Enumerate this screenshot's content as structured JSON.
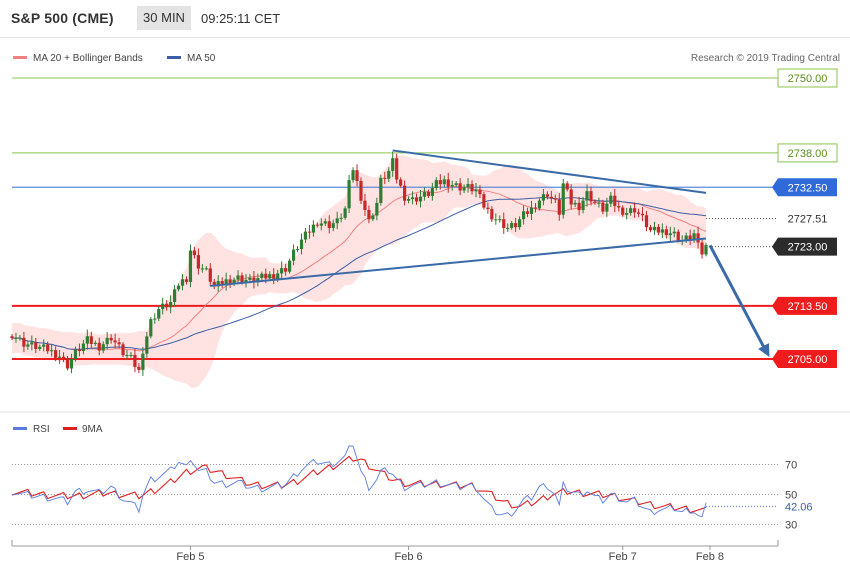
{
  "header": {
    "symbol": "S&P 500 (CME)",
    "timeframe": "30 MIN",
    "time": "09:25:11 CET"
  },
  "legend": {
    "ma20_label": "MA 20 + Bollinger Bands",
    "ma50_label": "MA 50",
    "credit": "Research © 2019 Trading Central",
    "rsi_label": "RSI",
    "rsi_ma_label": "9MA"
  },
  "colors": {
    "ma20": "#f08080",
    "band_fill": "#ffd9d9",
    "ma50": "#3a5ea6",
    "up_candle": "#2e7d32",
    "down_candle": "#c62828",
    "trendline": "#3a6aa8",
    "support": "#ee1c1c",
    "resistance_target": "#8bc34a",
    "pivot_line": "#5b8dd9",
    "arrow": "#3a6aa8",
    "rsi": "#5b7be0",
    "rsi_ma": "#e02020"
  },
  "chart_data": [
    {
      "type": "candlestick",
      "title": "S&P 500 (CME) 30 MIN",
      "y_range": [
        2700.5,
        2751.0
      ],
      "x_range": [
        0,
        180
      ],
      "x_tick_labels": [
        {
          "label": "Feb 5",
          "x": 45
        },
        {
          "label": "Feb 6",
          "x": 100
        },
        {
          "label": "Feb 7",
          "x": 154
        },
        {
          "label": "Feb 8",
          "x": 176
        }
      ],
      "levels": [
        {
          "label": "2750.00",
          "value": 2750.0,
          "style": "target"
        },
        {
          "label": "2738.00",
          "value": 2738.0,
          "style": "target"
        },
        {
          "label": "2732.50",
          "value": 2732.5,
          "style": "pivot"
        },
        {
          "label": "2727.51",
          "value": 2727.51,
          "style": "dotted"
        },
        {
          "label": "2723.00",
          "value": 2723.0,
          "style": "last"
        },
        {
          "label": "2713.50",
          "value": 2713.5,
          "style": "support"
        },
        {
          "label": "2705.00",
          "value": 2705.0,
          "style": "support"
        }
      ],
      "trendlines": [
        {
          "name": "upper",
          "from": {
            "x": 96,
            "y": 2738.4
          },
          "to": {
            "x": 175,
            "y": 2731.6
          }
        },
        {
          "name": "lower",
          "from": {
            "x": 50,
            "y": 2716.7
          },
          "to": {
            "x": 175,
            "y": 2724.3
          }
        }
      ],
      "projection_arrow": {
        "from": {
          "x": 176,
          "y": 2723.2
        },
        "to": {
          "x": 191,
          "y": 2705.3
        }
      },
      "price_path": [
        [
          0,
          2709.0
        ],
        [
          3,
          2707.5
        ],
        [
          6,
          2707.0
        ],
        [
          9,
          2706.5
        ],
        [
          12,
          2705.5
        ],
        [
          14,
          2704.0
        ],
        [
          16,
          2706.0
        ],
        [
          19,
          2708.0
        ],
        [
          22,
          2707.0
        ],
        [
          25,
          2708.5
        ],
        [
          28,
          2706.0
        ],
        [
          30,
          2705.0
        ],
        [
          32,
          2703.0
        ],
        [
          33,
          2706.5
        ],
        [
          35,
          2711.0
        ],
        [
          37,
          2713.0
        ],
        [
          40,
          2714.0
        ],
        [
          42,
          2717.0
        ],
        [
          44,
          2718.0
        ],
        [
          45,
          2722.5
        ],
        [
          47,
          2720.0
        ],
        [
          49,
          2719.0
        ],
        [
          51,
          2716.5
        ],
        [
          54,
          2717.5
        ],
        [
          57,
          2718.0
        ],
        [
          60,
          2717.5
        ],
        [
          63,
          2718.0
        ],
        [
          66,
          2718.5
        ],
        [
          69,
          2719.5
        ],
        [
          71,
          2722.0
        ],
        [
          73,
          2724.0
        ],
        [
          75,
          2725.5
        ],
        [
          77,
          2727.0
        ],
        [
          80,
          2726.5
        ],
        [
          82,
          2727.0
        ],
        [
          84,
          2729.0
        ],
        [
          85,
          2733.0
        ],
        [
          86,
          2735.5
        ],
        [
          88,
          2731.0
        ],
        [
          90,
          2727.0
        ],
        [
          92,
          2730.0
        ],
        [
          93,
          2733.5
        ],
        [
          95,
          2735.0
        ],
        [
          96,
          2736.5
        ],
        [
          97,
          2734.0
        ],
        [
          99,
          2731.0
        ],
        [
          101,
          2730.5
        ],
        [
          103,
          2731.0
        ],
        [
          105,
          2731.5
        ],
        [
          107,
          2733.0
        ],
        [
          109,
          2733.5
        ],
        [
          111,
          2733.0
        ],
        [
          113,
          2732.5
        ],
        [
          115,
          2732.5
        ],
        [
          117,
          2732.0
        ],
        [
          119,
          2729.5
        ],
        [
          121,
          2728.0
        ],
        [
          123,
          2727.0
        ],
        [
          125,
          2726.0
        ],
        [
          127,
          2726.5
        ],
        [
          129,
          2728.0
        ],
        [
          131,
          2729.0
        ],
        [
          133,
          2730.5
        ],
        [
          135,
          2731.5
        ],
        [
          137,
          2730.0
        ],
        [
          138,
          2728.5
        ],
        [
          139,
          2733.0
        ],
        [
          141,
          2730.0
        ],
        [
          143,
          2729.5
        ],
        [
          145,
          2731.5
        ],
        [
          147,
          2730.0
        ],
        [
          149,
          2729.0
        ],
        [
          151,
          2730.5
        ],
        [
          153,
          2729.0
        ],
        [
          155,
          2728.5
        ],
        [
          157,
          2729.0
        ],
        [
          159,
          2727.5
        ],
        [
          161,
          2725.5
        ],
        [
          163,
          2725.5
        ],
        [
          165,
          2725.5
        ],
        [
          167,
          2725.0
        ],
        [
          169,
          2724.0
        ],
        [
          171,
          2724.5
        ],
        [
          172,
          2725.0
        ],
        [
          173,
          2723.0
        ],
        [
          174,
          2722.0
        ],
        [
          175,
          2723.0
        ]
      ]
    },
    {
      "type": "line",
      "title": "RSI",
      "y_range": [
        25,
        85
      ],
      "y_ticks": [
        70,
        50,
        30
      ],
      "last_value_label": "42.06",
      "series": [
        {
          "name": "RSI",
          "values": [
            [
              0,
              52
            ],
            [
              3,
              50
            ],
            [
              6,
              49
            ],
            [
              9,
              48
            ],
            [
              12,
              47
            ],
            [
              14,
              45
            ],
            [
              16,
              52
            ],
            [
              19,
              53
            ],
            [
              22,
              51
            ],
            [
              25,
              55
            ],
            [
              28,
              47
            ],
            [
              30,
              44
            ],
            [
              32,
              40
            ],
            [
              33,
              50
            ],
            [
              35,
              60
            ],
            [
              37,
              62
            ],
            [
              40,
              66
            ],
            [
              42,
              72
            ],
            [
              44,
              68
            ],
            [
              45,
              75
            ],
            [
              47,
              66
            ],
            [
              49,
              65
            ],
            [
              51,
              58
            ],
            [
              54,
              57
            ],
            [
              57,
              58
            ],
            [
              60,
              55
            ],
            [
              63,
              54
            ],
            [
              66,
              55
            ],
            [
              69,
              57
            ],
            [
              71,
              62
            ],
            [
              73,
              67
            ],
            [
              75,
              70
            ],
            [
              77,
              72
            ],
            [
              80,
              70
            ],
            [
              82,
              72
            ],
            [
              84,
              75
            ],
            [
              85,
              80
            ],
            [
              86,
              84
            ],
            [
              88,
              65
            ],
            [
              90,
              55
            ],
            [
              92,
              60
            ],
            [
              93,
              65
            ],
            [
              95,
              66
            ],
            [
              96,
              64
            ],
            [
              97,
              60
            ],
            [
              99,
              55
            ],
            [
              101,
              56
            ],
            [
              103,
              56
            ],
            [
              105,
              57
            ],
            [
              107,
              58
            ],
            [
              109,
              57
            ],
            [
              111,
              56
            ],
            [
              113,
              55
            ],
            [
              115,
              56
            ],
            [
              117,
              55
            ],
            [
              119,
              47
            ],
            [
              121,
              40
            ],
            [
              123,
              37
            ],
            [
              125,
              36
            ],
            [
              127,
              40
            ],
            [
              129,
              46
            ],
            [
              131,
              48
            ],
            [
              133,
              55
            ],
            [
              135,
              56
            ],
            [
              137,
              50
            ],
            [
              138,
              42
            ],
            [
              139,
              56
            ],
            [
              141,
              52
            ],
            [
              143,
              50
            ],
            [
              145,
              53
            ],
            [
              147,
              48
            ],
            [
              149,
              46
            ],
            [
              151,
              50
            ],
            [
              153,
              48
            ],
            [
              155,
              45
            ],
            [
              157,
              46
            ],
            [
              159,
              42
            ],
            [
              161,
              38
            ],
            [
              163,
              40
            ],
            [
              165,
              40
            ],
            [
              167,
              41
            ],
            [
              169,
              38
            ],
            [
              171,
              40
            ],
            [
              172,
              39
            ],
            [
              173,
              36
            ],
            [
              174,
              34
            ],
            [
              175,
              42
            ]
          ]
        },
        {
          "name": "9MA",
          "values": [
            [
              0,
              52
            ],
            [
              4,
              51
            ],
            [
              8,
              50
            ],
            [
              12,
              49
            ],
            [
              16,
              49
            ],
            [
              20,
              50
            ],
            [
              24,
              51
            ],
            [
              28,
              50
            ],
            [
              32,
              49
            ],
            [
              36,
              53
            ],
            [
              40,
              58
            ],
            [
              44,
              65
            ],
            [
              48,
              68
            ],
            [
              52,
              65
            ],
            [
              56,
              61
            ],
            [
              60,
              57
            ],
            [
              64,
              56
            ],
            [
              68,
              56
            ],
            [
              72,
              59
            ],
            [
              76,
              64
            ],
            [
              80,
              68
            ],
            [
              84,
              72
            ],
            [
              86,
              74
            ],
            [
              88,
              73
            ],
            [
              92,
              66
            ],
            [
              96,
              60
            ],
            [
              100,
              57
            ],
            [
              104,
              57
            ],
            [
              108,
              57
            ],
            [
              112,
              56
            ],
            [
              116,
              56
            ],
            [
              120,
              51
            ],
            [
              124,
              45
            ],
            [
              128,
              42
            ],
            [
              132,
              45
            ],
            [
              136,
              50
            ],
            [
              140,
              52
            ],
            [
              144,
              51
            ],
            [
              148,
              50
            ],
            [
              152,
              49
            ],
            [
              156,
              46
            ],
            [
              160,
              44
            ],
            [
              164,
              42
            ],
            [
              168,
              41
            ],
            [
              172,
              40
            ],
            [
              175,
              39
            ]
          ]
        }
      ]
    }
  ]
}
